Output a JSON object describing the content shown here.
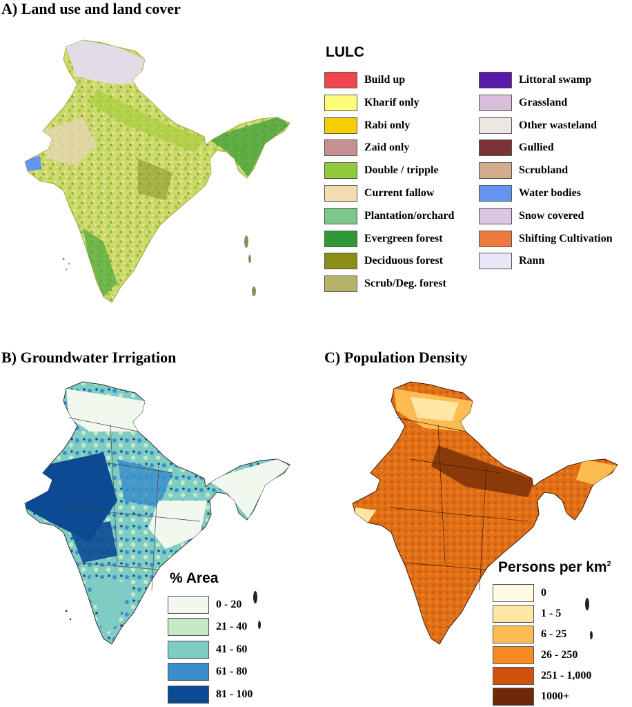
{
  "panels": {
    "a": {
      "title": "A) Land use and land cover",
      "legend_title": "LULC",
      "legend_col1": [
        {
          "label": "Build up",
          "color": "#f0454e"
        },
        {
          "label": "Kharif only",
          "color": "#fdfd78"
        },
        {
          "label": "Rabi only",
          "color": "#f5d000"
        },
        {
          "label": "Zaid only",
          "color": "#c49090"
        },
        {
          "label": "Double / tripple",
          "color": "#92c93a"
        },
        {
          "label": "Current fallow",
          "color": "#f2dcb0"
        },
        {
          "label": "Plantation/orchard",
          "color": "#7ec78a"
        },
        {
          "label": "Evergreen forest",
          "color": "#2f9a35"
        },
        {
          "label": "Deciduous forest",
          "color": "#8a8e14"
        },
        {
          "label": "Scrub/Deg. forest",
          "color": "#b6b26a"
        }
      ],
      "legend_col2": [
        {
          "label": "Littoral swamp",
          "color": "#5a1aa8"
        },
        {
          "label": "Grassland",
          "color": "#d9bedb"
        },
        {
          "label": "Other wasteland",
          "color": "#ece7e0"
        },
        {
          "label": "Gullied",
          "color": "#7a3438"
        },
        {
          "label": "Scrubland",
          "color": "#d3ac8c"
        },
        {
          "label": "Water bodies",
          "color": "#6394ef"
        },
        {
          "label": "Snow covered",
          "color": "#dcc6e2"
        },
        {
          "label": "Shifting Cultivation",
          "color": "#ee7b3e"
        },
        {
          "label": "Rann",
          "color": "#e9e6f8"
        }
      ]
    },
    "b": {
      "title": "B) Groundwater Irrigation",
      "legend_title": "% Area",
      "legend": [
        {
          "label": "0 - 20",
          "color": "#f1f8ee"
        },
        {
          "label": "21 - 40",
          "color": "#c8e9c6"
        },
        {
          "label": "41 - 60",
          "color": "#7fccc4"
        },
        {
          "label": "61 - 80",
          "color": "#3b8fc9"
        },
        {
          "label": "81 - 100",
          "color": "#0c4b94"
        }
      ]
    },
    "c": {
      "title": "C) Population Density",
      "legend_title_main": "Persons per km",
      "legend_title_sup": "2",
      "legend": [
        {
          "label": "0",
          "color": "#fffbe4"
        },
        {
          "label": "1 - 5",
          "color": "#fee7a4"
        },
        {
          "label": "6 - 25",
          "color": "#fdbc52"
        },
        {
          "label": "26 - 250",
          "color": "#f58923"
        },
        {
          "label": "251 - 1,000",
          "color": "#cf520c"
        },
        {
          "label": "1000+",
          "color": "#6e2a06"
        }
      ]
    }
  }
}
